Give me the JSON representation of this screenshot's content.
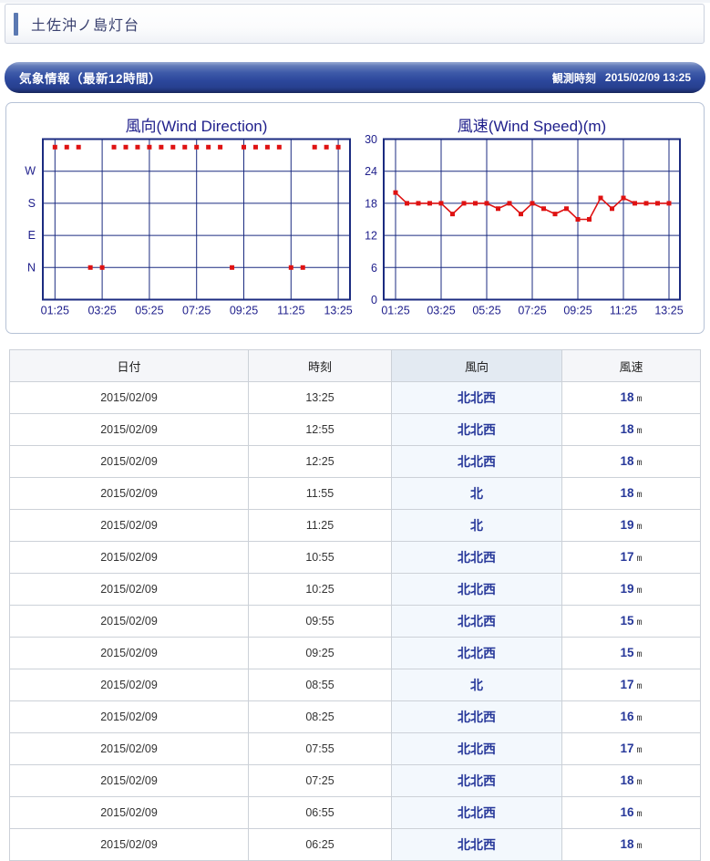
{
  "page": {
    "title": "土佐沖ノ島灯台"
  },
  "section_bar": {
    "title": "気象情報（最新12時間）",
    "observed_label": "観測時刻",
    "observed_time": "2015/02/09 13:25"
  },
  "colors": {
    "chart_navy": "#20208c",
    "grid_navy": "#1b2b80",
    "marker_red": "#df1212",
    "bar_blue": "#2c479c",
    "direction_col_bg": "#f3f8fd"
  },
  "chart_data": [
    {
      "type": "scatter",
      "title": "風向(Wind Direction)",
      "x": [
        "01:25",
        "01:55",
        "02:25",
        "02:55",
        "03:25",
        "03:55",
        "04:25",
        "04:55",
        "05:25",
        "05:55",
        "06:25",
        "06:55",
        "07:25",
        "07:55",
        "08:25",
        "08:55",
        "09:25",
        "09:55",
        "10:25",
        "10:55",
        "11:25",
        "11:55",
        "12:25",
        "12:55",
        "13:25"
      ],
      "values": [
        "NNW",
        "NNW",
        "NNW",
        "N",
        "N",
        "NNW",
        "NNW",
        "NNW",
        "NNW",
        "NNW",
        "NNW",
        "NNW",
        "NNW",
        "NNW",
        "NNW",
        "N",
        "NNW",
        "NNW",
        "NNW",
        "NNW",
        "N",
        "N",
        "NNW",
        "NNW",
        "NNW"
      ],
      "direction_degrees": {
        "N": 0,
        "NNW": 337.5
      },
      "y_axis_labels": [
        "W",
        "S",
        "E",
        "N"
      ],
      "y_axis_label_degrees": [
        270,
        180,
        90,
        0
      ],
      "axis_top_deg": 360,
      "x_ticks": [
        "01:25",
        "03:25",
        "05:25",
        "07:25",
        "09:25",
        "11:25",
        "13:25"
      ],
      "grid": true,
      "legend": "none"
    },
    {
      "type": "line",
      "title": "風速(Wind Speed)(m)",
      "x": [
        "01:25",
        "01:55",
        "02:25",
        "02:55",
        "03:25",
        "03:55",
        "04:25",
        "04:55",
        "05:25",
        "05:55",
        "06:25",
        "06:55",
        "07:25",
        "07:55",
        "08:25",
        "08:55",
        "09:25",
        "09:55",
        "10:25",
        "10:55",
        "11:25",
        "11:55",
        "12:25",
        "12:55",
        "13:25"
      ],
      "values": [
        20,
        18,
        18,
        18,
        18,
        16,
        18,
        18,
        18,
        17,
        18,
        16,
        18,
        17,
        16,
        17,
        15,
        15,
        19,
        17,
        19,
        18,
        18,
        18,
        18
      ],
      "ylim": [
        0,
        30
      ],
      "y_ticks": [
        30,
        24,
        18,
        12,
        6,
        0
      ],
      "x_ticks": [
        "01:25",
        "03:25",
        "05:25",
        "07:25",
        "09:25",
        "11:25",
        "13:25"
      ],
      "grid": true,
      "legend": "none"
    }
  ],
  "table": {
    "headers": [
      "日付",
      "時刻",
      "風向",
      "風速"
    ],
    "speed_unit": "m",
    "rows": [
      {
        "date": "2015/02/09",
        "time": "13:25",
        "direction": "北北西",
        "speed": "18"
      },
      {
        "date": "2015/02/09",
        "time": "12:55",
        "direction": "北北西",
        "speed": "18"
      },
      {
        "date": "2015/02/09",
        "time": "12:25",
        "direction": "北北西",
        "speed": "18"
      },
      {
        "date": "2015/02/09",
        "time": "11:55",
        "direction": "北",
        "speed": "18"
      },
      {
        "date": "2015/02/09",
        "time": "11:25",
        "direction": "北",
        "speed": "19"
      },
      {
        "date": "2015/02/09",
        "time": "10:55",
        "direction": "北北西",
        "speed": "17"
      },
      {
        "date": "2015/02/09",
        "time": "10:25",
        "direction": "北北西",
        "speed": "19"
      },
      {
        "date": "2015/02/09",
        "time": "09:55",
        "direction": "北北西",
        "speed": "15"
      },
      {
        "date": "2015/02/09",
        "time": "09:25",
        "direction": "北北西",
        "speed": "15"
      },
      {
        "date": "2015/02/09",
        "time": "08:55",
        "direction": "北",
        "speed": "17"
      },
      {
        "date": "2015/02/09",
        "time": "08:25",
        "direction": "北北西",
        "speed": "16"
      },
      {
        "date": "2015/02/09",
        "time": "07:55",
        "direction": "北北西",
        "speed": "17"
      },
      {
        "date": "2015/02/09",
        "time": "07:25",
        "direction": "北北西",
        "speed": "18"
      },
      {
        "date": "2015/02/09",
        "time": "06:55",
        "direction": "北北西",
        "speed": "16"
      },
      {
        "date": "2015/02/09",
        "time": "06:25",
        "direction": "北北西",
        "speed": "18"
      }
    ]
  }
}
